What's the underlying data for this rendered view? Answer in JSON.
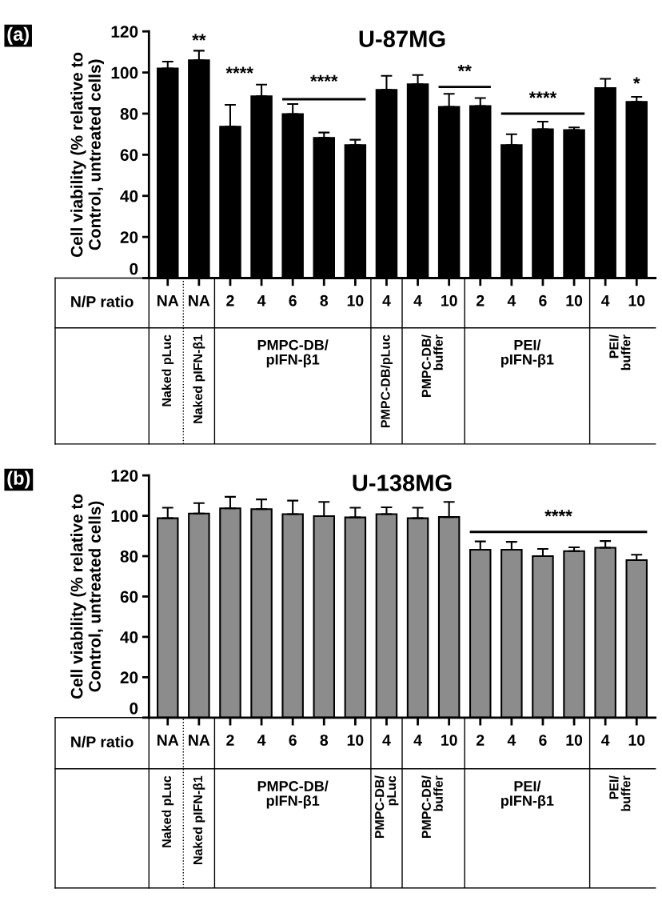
{
  "chart_data": [
    {
      "type": "bar",
      "title": "U-87MG",
      "ylabel": "Cell viability (% relative to\nControl, untreated cells)",
      "categories": [
        "NA",
        "NA",
        "2",
        "4",
        "6",
        "8",
        "10",
        "4",
        "4",
        "10",
        "2",
        "4",
        "6",
        "10",
        "4",
        "10"
      ],
      "values": [
        102,
        106,
        73.7,
        88.4,
        79.8,
        68.2,
        64.7,
        91.6,
        94.3,
        83.3,
        83.7,
        64.7,
        72.4,
        72,
        92.4,
        85.7
      ],
      "errors": [
        [
          102,
          105.3
        ],
        [
          106,
          110.6
        ],
        [
          73.7,
          84.3
        ],
        [
          88.4,
          94.1
        ],
        [
          79.8,
          84.7
        ],
        [
          68.2,
          70.8
        ],
        [
          64.7,
          67.3
        ],
        [
          91.6,
          98.4
        ],
        [
          94.3,
          98.8
        ],
        [
          83.3,
          89.6
        ],
        [
          83.7,
          87.6
        ],
        [
          64.7,
          70
        ],
        [
          72.4,
          76.1
        ],
        [
          72,
          73.3
        ],
        [
          92.4,
          96.9
        ],
        [
          85.7,
          88.2
        ]
      ],
      "color": "#000000",
      "ylim": [
        0,
        120
      ],
      "yticks": [
        0,
        20,
        40,
        60,
        80,
        100,
        120
      ],
      "grid": false,
      "annotations": [
        "(a)",
        "N/P ratio",
        "Naked pLuc",
        "Naked pIFN-β1",
        "PMPC-DB/\npIFN-β1",
        "PMPC-DB/pLuc",
        "PMPC-DB/\nbuffer",
        "PEI/\npIFN-β1",
        "PEI/\nbuffer",
        "**",
        "****",
        "****",
        "**",
        "****",
        "*"
      ]
    },
    {
      "type": "bar",
      "title": "U-138MG",
      "ylabel": "Cell viability (% relative to\nControl, untreated cells)",
      "categories": [
        "NA",
        "NA",
        "2",
        "4",
        "6",
        "8",
        "10",
        "4",
        "4",
        "10",
        "2",
        "4",
        "6",
        "10",
        "4",
        "10"
      ],
      "values": [
        98.8,
        101.1,
        103.7,
        103.3,
        100.8,
        99.8,
        99.2,
        100.8,
        98.8,
        99.4,
        83.2,
        83.2,
        80,
        82.5,
        84.2,
        78
      ],
      "errors": [
        [
          98.8,
          104
        ],
        [
          101.1,
          106.3
        ],
        [
          103.7,
          109.4
        ],
        [
          103.3,
          108.1
        ],
        [
          100.8,
          107.5
        ],
        [
          99.8,
          106.9
        ],
        [
          99.2,
          104
        ],
        [
          100.8,
          104.2
        ],
        [
          98.8,
          104
        ],
        [
          99.4,
          106.9
        ],
        [
          83.2,
          87.3
        ],
        [
          83.2,
          87.1
        ],
        [
          80,
          83.6
        ],
        [
          82.5,
          84.4
        ],
        [
          84.2,
          87.5
        ],
        [
          78,
          80.7
        ]
      ],
      "color": "#8c8c8c",
      "ylim": [
        0,
        120
      ],
      "yticks": [
        0,
        20,
        40,
        60,
        80,
        100,
        120
      ],
      "grid": false,
      "annotations": [
        "(b)",
        "N/P ratio",
        "Naked pLuc",
        "Naked pIFN-β1",
        "PMPC-DB/\npIFN-β1",
        "PMPC-DB/\npLuc",
        "PMPC-DB/\nbuffer",
        "PEI/\npIFN-β1",
        "PEI/\nbuffer",
        "****"
      ]
    }
  ]
}
